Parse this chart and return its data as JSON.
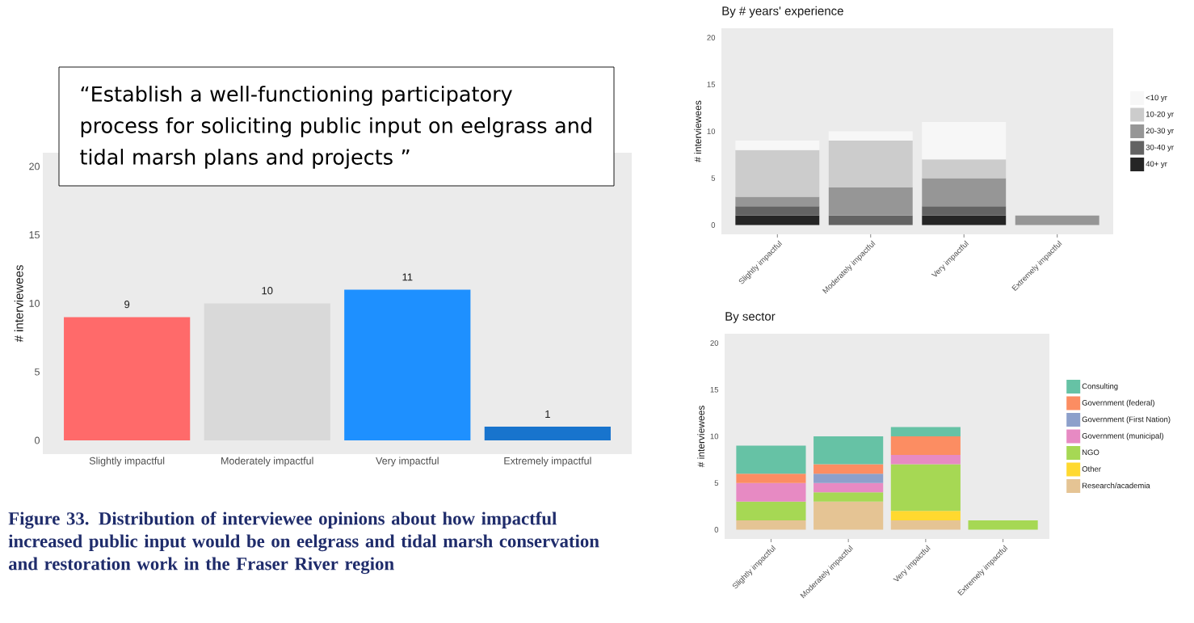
{
  "chart_data": [
    {
      "type": "bar",
      "categories": [
        "Slightly impactful",
        "Moderately impactful",
        "Very impactful",
        "Extremely impactful"
      ],
      "values": [
        9,
        10,
        11,
        1
      ],
      "colors": [
        "#ff6a6a",
        "#d9d9d9",
        "#1e90ff",
        "#1874cd"
      ],
      "data_labels": true,
      "ylabel": "# interviewees",
      "ylim": [
        -1,
        21
      ],
      "yticks": [
        0,
        5,
        10,
        15,
        20
      ],
      "annotations": [
        "“Establish a well-functioning participatory process for soliciting public input on eelgrass and tidal marsh plans and projects ”",
        "Figure 33. Distribution of interviewee opinions about how impactful increased public input would be on eelgrass and tidal marsh conservation and restoration work in the Fraser River region"
      ]
    },
    {
      "type": "bar",
      "title": "By # years' experience",
      "categories": [
        "Slightly impactful",
        "Moderately impactful",
        "Very impactful",
        "Extremely impactful"
      ],
      "stacked": true,
      "series": [
        {
          "name": "40+ yr",
          "color": "#252525",
          "values": [
            1,
            null,
            1,
            null
          ]
        },
        {
          "name": "30-40 yr",
          "color": "#636363",
          "values": [
            1,
            1,
            1,
            null
          ]
        },
        {
          "name": "20-30 yr",
          "color": "#969696",
          "values": [
            1,
            3,
            3,
            1
          ]
        },
        {
          "name": "10-20 yr",
          "color": "#cccccc",
          "values": [
            5,
            5,
            2,
            null
          ]
        },
        {
          "name": "<10 yr",
          "color": "#f7f7f7",
          "values": [
            1,
            1,
            4,
            null
          ]
        }
      ],
      "ylabel": "# interviewees",
      "ylim": [
        -1,
        21
      ],
      "yticks": [
        0,
        5,
        10,
        15,
        20
      ],
      "legend": "right"
    },
    {
      "type": "bar",
      "title": "By sector",
      "categories": [
        "Slightly impactful",
        "Moderately impactful",
        "Very impactful",
        "Extremely impactful"
      ],
      "stacked": true,
      "series": [
        {
          "name": "Research/academia",
          "color": "#e5c494",
          "values": [
            1,
            3,
            1,
            null
          ]
        },
        {
          "name": "Other",
          "color": "#ffd92f",
          "values": [
            null,
            null,
            1,
            null
          ]
        },
        {
          "name": "NGO",
          "color": "#a6d854",
          "values": [
            2,
            1,
            5,
            1
          ]
        },
        {
          "name": "Government (municipal)",
          "color": "#e78ac3",
          "values": [
            2,
            1,
            1,
            null
          ]
        },
        {
          "name": "Government (First Nation)",
          "color": "#8da0cb",
          "values": [
            null,
            1,
            null,
            null
          ]
        },
        {
          "name": "Government (federal)",
          "color": "#fc8d62",
          "values": [
            1,
            1,
            2,
            null
          ]
        },
        {
          "name": "Consulting",
          "color": "#66c2a5",
          "values": [
            3,
            3,
            1,
            null
          ]
        }
      ],
      "ylabel": "# interviewees",
      "ylim": [
        -1,
        21
      ],
      "yticks": [
        0,
        5,
        10,
        15,
        20
      ],
      "legend": "right"
    }
  ]
}
